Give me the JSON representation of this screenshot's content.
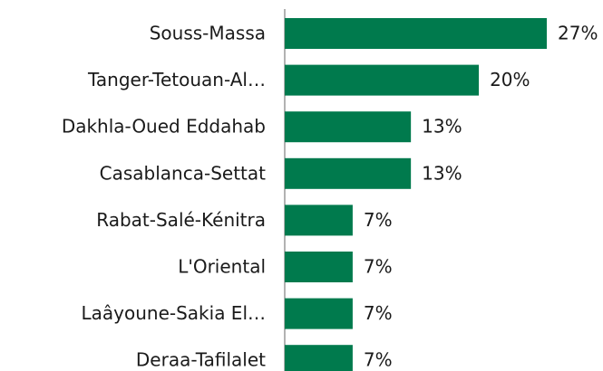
{
  "chart_data": {
    "type": "bar",
    "orientation": "horizontal",
    "categories": [
      "Souss-Massa",
      "Tanger-Tetouan-Al…",
      "Dakhla-Oued Eddahab",
      "Casablanca-Settat",
      "Rabat-Salé-Kénitra",
      "L'Oriental",
      "Laâyoune-Sakia El…",
      "Deraa-Tafilalet"
    ],
    "values": [
      27,
      20,
      13,
      13,
      7,
      7,
      7,
      7
    ],
    "value_labels": [
      "27%",
      "20%",
      "13%",
      "13%",
      "7%",
      "7%",
      "7%",
      "7%"
    ],
    "color": "#007a4d"
  }
}
